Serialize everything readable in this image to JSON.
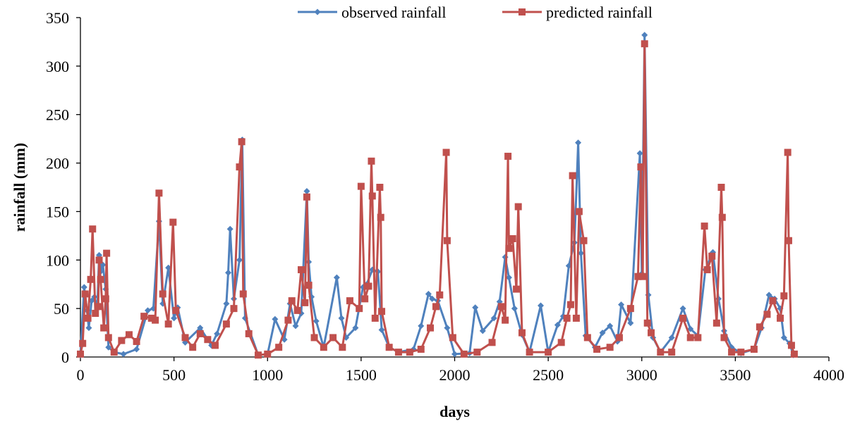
{
  "chart_data": {
    "type": "line",
    "title": "",
    "xlabel": "days",
    "ylabel": "rainfall (mm)",
    "xlim": [
      0,
      4000
    ],
    "ylim": [
      0,
      350
    ],
    "xticks": [
      0,
      500,
      1000,
      1500,
      2000,
      2500,
      3000,
      3500,
      4000
    ],
    "yticks": [
      0,
      50,
      100,
      150,
      200,
      250,
      300,
      350
    ],
    "grid": false,
    "legend_position": "top-center",
    "series": [
      {
        "name": "observed rainfall",
        "color": "#4F81BD",
        "marker": "diamond",
        "points": [
          [
            0,
            2
          ],
          [
            20,
            72
          ],
          [
            35,
            48
          ],
          [
            45,
            30
          ],
          [
            60,
            58
          ],
          [
            75,
            62
          ],
          [
            90,
            50
          ],
          [
            100,
            105
          ],
          [
            108,
            88
          ],
          [
            120,
            95
          ],
          [
            135,
            70
          ],
          [
            150,
            10
          ],
          [
            180,
            5
          ],
          [
            230,
            3
          ],
          [
            300,
            8
          ],
          [
            360,
            48
          ],
          [
            390,
            50
          ],
          [
            420,
            140
          ],
          [
            440,
            55
          ],
          [
            470,
            92
          ],
          [
            500,
            40
          ],
          [
            520,
            51
          ],
          [
            560,
            15
          ],
          [
            640,
            30
          ],
          [
            700,
            12
          ],
          [
            730,
            24
          ],
          [
            780,
            55
          ],
          [
            790,
            87
          ],
          [
            800,
            132
          ],
          [
            820,
            60
          ],
          [
            850,
            100
          ],
          [
            865,
            224
          ],
          [
            880,
            40
          ],
          [
            950,
            2
          ],
          [
            1000,
            3
          ],
          [
            1040,
            39
          ],
          [
            1090,
            18
          ],
          [
            1120,
            55
          ],
          [
            1150,
            32
          ],
          [
            1180,
            45
          ],
          [
            1210,
            171
          ],
          [
            1220,
            98
          ],
          [
            1235,
            62
          ],
          [
            1260,
            37
          ],
          [
            1300,
            10
          ],
          [
            1370,
            82
          ],
          [
            1395,
            40
          ],
          [
            1420,
            20
          ],
          [
            1470,
            30
          ],
          [
            1510,
            72
          ],
          [
            1530,
            75
          ],
          [
            1560,
            90
          ],
          [
            1590,
            88
          ],
          [
            1610,
            28
          ],
          [
            1650,
            10
          ],
          [
            1700,
            5
          ],
          [
            1780,
            8
          ],
          [
            1820,
            32
          ],
          [
            1860,
            65
          ],
          [
            1880,
            60
          ],
          [
            1910,
            58
          ],
          [
            1960,
            30
          ],
          [
            2000,
            3
          ],
          [
            2080,
            4
          ],
          [
            2110,
            51
          ],
          [
            2150,
            27
          ],
          [
            2210,
            40
          ],
          [
            2240,
            57
          ],
          [
            2270,
            103
          ],
          [
            2290,
            82
          ],
          [
            2320,
            50
          ],
          [
            2360,
            23
          ],
          [
            2400,
            5
          ],
          [
            2460,
            53
          ],
          [
            2500,
            5
          ],
          [
            2550,
            33
          ],
          [
            2580,
            42
          ],
          [
            2610,
            94
          ],
          [
            2640,
            118
          ],
          [
            2660,
            221
          ],
          [
            2675,
            107
          ],
          [
            2700,
            22
          ],
          [
            2750,
            10
          ],
          [
            2790,
            25
          ],
          [
            2830,
            32
          ],
          [
            2870,
            16
          ],
          [
            2890,
            54
          ],
          [
            2940,
            35
          ],
          [
            2990,
            210
          ],
          [
            3000,
            86
          ],
          [
            3015,
            332
          ],
          [
            3035,
            64
          ],
          [
            3060,
            20
          ],
          [
            3100,
            5
          ],
          [
            3160,
            20
          ],
          [
            3220,
            50
          ],
          [
            3260,
            29
          ],
          [
            3300,
            22
          ],
          [
            3340,
            90
          ],
          [
            3380,
            108
          ],
          [
            3410,
            60
          ],
          [
            3440,
            27
          ],
          [
            3480,
            10
          ],
          [
            3530,
            4
          ],
          [
            3600,
            8
          ],
          [
            3640,
            30
          ],
          [
            3680,
            64
          ],
          [
            3710,
            60
          ],
          [
            3740,
            50
          ],
          [
            3760,
            20
          ],
          [
            3790,
            14
          ],
          [
            3810,
            2
          ]
        ]
      },
      {
        "name": "predicted rainfall",
        "color": "#C0504D",
        "marker": "square",
        "points": [
          [
            0,
            3
          ],
          [
            12,
            14
          ],
          [
            25,
            65
          ],
          [
            40,
            40
          ],
          [
            55,
            80
          ],
          [
            65,
            132
          ],
          [
            80,
            45
          ],
          [
            95,
            52
          ],
          [
            100,
            100
          ],
          [
            108,
            80
          ],
          [
            125,
            30
          ],
          [
            135,
            60
          ],
          [
            140,
            107
          ],
          [
            150,
            20
          ],
          [
            180,
            5
          ],
          [
            220,
            17
          ],
          [
            260,
            23
          ],
          [
            300,
            16
          ],
          [
            340,
            42
          ],
          [
            380,
            40
          ],
          [
            400,
            38
          ],
          [
            420,
            169
          ],
          [
            440,
            65
          ],
          [
            470,
            34
          ],
          [
            495,
            139
          ],
          [
            510,
            48
          ],
          [
            560,
            20
          ],
          [
            600,
            10
          ],
          [
            640,
            24
          ],
          [
            680,
            18
          ],
          [
            720,
            12
          ],
          [
            780,
            34
          ],
          [
            820,
            50
          ],
          [
            850,
            196
          ],
          [
            862,
            222
          ],
          [
            870,
            65
          ],
          [
            900,
            24
          ],
          [
            950,
            2
          ],
          [
            1000,
            3
          ],
          [
            1060,
            10
          ],
          [
            1110,
            38
          ],
          [
            1130,
            58
          ],
          [
            1160,
            48
          ],
          [
            1180,
            90
          ],
          [
            1200,
            56
          ],
          [
            1210,
            165
          ],
          [
            1220,
            74
          ],
          [
            1250,
            20
          ],
          [
            1300,
            10
          ],
          [
            1350,
            20
          ],
          [
            1400,
            10
          ],
          [
            1440,
            58
          ],
          [
            1490,
            50
          ],
          [
            1500,
            176
          ],
          [
            1520,
            60
          ],
          [
            1540,
            73
          ],
          [
            1555,
            202
          ],
          [
            1560,
            166
          ],
          [
            1575,
            40
          ],
          [
            1600,
            175
          ],
          [
            1605,
            144
          ],
          [
            1610,
            47
          ],
          [
            1650,
            10
          ],
          [
            1700,
            5
          ],
          [
            1760,
            5
          ],
          [
            1820,
            8
          ],
          [
            1870,
            30
          ],
          [
            1900,
            52
          ],
          [
            1920,
            64
          ],
          [
            1955,
            211
          ],
          [
            1960,
            120
          ],
          [
            1990,
            20
          ],
          [
            2050,
            3
          ],
          [
            2120,
            5
          ],
          [
            2200,
            15
          ],
          [
            2250,
            52
          ],
          [
            2270,
            38
          ],
          [
            2285,
            207
          ],
          [
            2290,
            112
          ],
          [
            2310,
            122
          ],
          [
            2330,
            70
          ],
          [
            2340,
            155
          ],
          [
            2360,
            25
          ],
          [
            2400,
            5
          ],
          [
            2500,
            5
          ],
          [
            2570,
            15
          ],
          [
            2600,
            40
          ],
          [
            2620,
            54
          ],
          [
            2630,
            187
          ],
          [
            2650,
            40
          ],
          [
            2665,
            150
          ],
          [
            2690,
            120
          ],
          [
            2710,
            20
          ],
          [
            2760,
            8
          ],
          [
            2830,
            10
          ],
          [
            2880,
            20
          ],
          [
            2940,
            50
          ],
          [
            2980,
            83
          ],
          [
            2995,
            196
          ],
          [
            3005,
            83
          ],
          [
            3015,
            323
          ],
          [
            3030,
            35
          ],
          [
            3050,
            25
          ],
          [
            3100,
            5
          ],
          [
            3160,
            5
          ],
          [
            3220,
            40
          ],
          [
            3260,
            20
          ],
          [
            3300,
            20
          ],
          [
            3335,
            135
          ],
          [
            3350,
            90
          ],
          [
            3375,
            104
          ],
          [
            3400,
            35
          ],
          [
            3425,
            175
          ],
          [
            3430,
            144
          ],
          [
            3440,
            20
          ],
          [
            3480,
            5
          ],
          [
            3530,
            5
          ],
          [
            3600,
            8
          ],
          [
            3630,
            31
          ],
          [
            3670,
            44
          ],
          [
            3700,
            58
          ],
          [
            3740,
            40
          ],
          [
            3760,
            63
          ],
          [
            3780,
            211
          ],
          [
            3785,
            120
          ],
          [
            3800,
            12
          ],
          [
            3815,
            3
          ]
        ]
      }
    ]
  }
}
